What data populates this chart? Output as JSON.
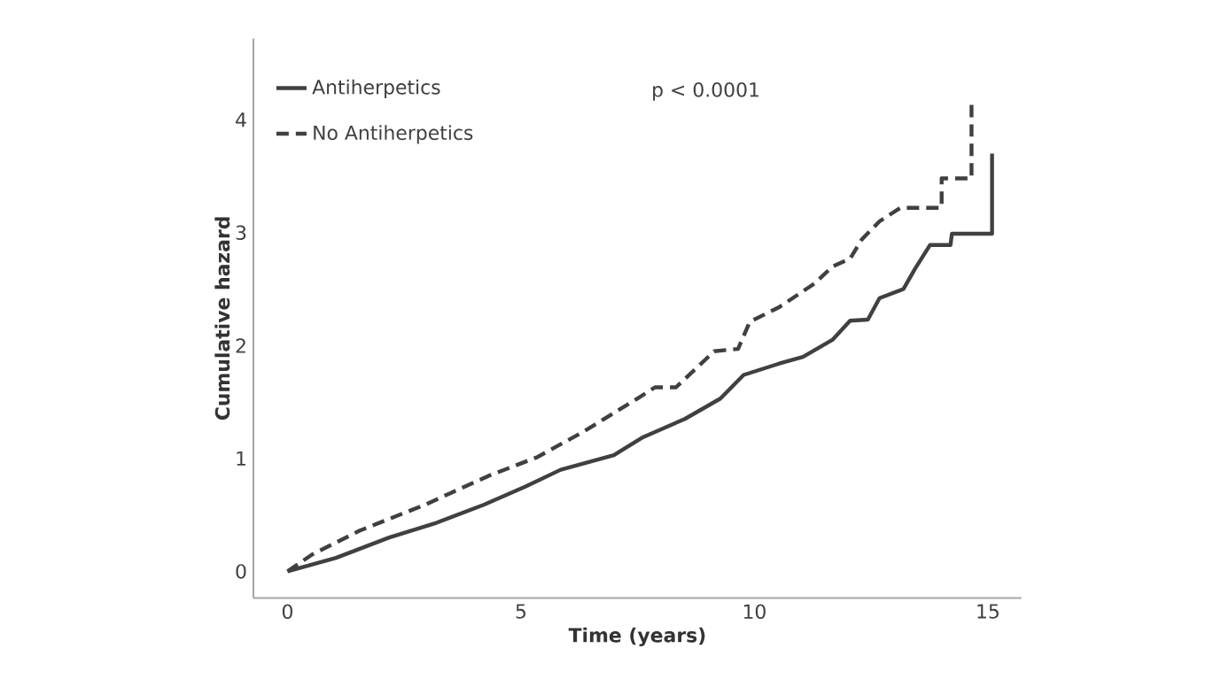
{
  "chart_data": {
    "type": "line",
    "xlabel": "Time (years)",
    "ylabel": "Cumulative hazard",
    "xlim": [
      -0.73,
      15.72
    ],
    "ylim": [
      -0.235,
      4.72
    ],
    "xticks": [
      0,
      5,
      10,
      15
    ],
    "yticks": [
      0,
      1,
      2,
      3,
      4
    ],
    "legend": "top left",
    "grid": false,
    "annotations": [
      "p < 0.0001"
    ],
    "series": [
      {
        "name": "Antiherpetics",
        "color": "#404040",
        "line_style": "solid",
        "x": [
          0,
          1.04,
          2.18,
          3.19,
          4.2,
          5.09,
          5.85,
          6.99,
          7.62,
          8.51,
          9.27,
          9.77,
          10.53,
          11.04,
          11.67,
          12.05,
          12.43,
          12.68,
          13.19,
          13.44,
          13.76,
          14.2,
          14.23,
          15.09,
          15.09
        ],
        "values": [
          0,
          0.12,
          0.3,
          0.43,
          0.59,
          0.75,
          0.9,
          1.03,
          1.19,
          1.35,
          1.53,
          1.74,
          1.84,
          1.9,
          2.05,
          2.22,
          2.23,
          2.42,
          2.5,
          2.68,
          2.89,
          2.89,
          2.99,
          2.99,
          3.7
        ]
      },
      {
        "name": "No Antiherpetics",
        "color": "#404040",
        "line_style": "dashed",
        "x": [
          0,
          0.53,
          1.54,
          2.94,
          4.33,
          5.34,
          6.35,
          7.49,
          7.87,
          8.32,
          9.14,
          9.65,
          9.9,
          10.53,
          11.29,
          11.67,
          12.05,
          12.3,
          12.68,
          13.13,
          14.01,
          14.01,
          14.65,
          14.65
        ],
        "values": [
          0,
          0.15,
          0.36,
          0.59,
          0.85,
          1.01,
          1.24,
          1.53,
          1.63,
          1.63,
          1.95,
          1.97,
          2.21,
          2.34,
          2.55,
          2.7,
          2.77,
          2.94,
          3.1,
          3.22,
          3.22,
          3.48,
          3.48,
          4.14
        ]
      }
    ]
  }
}
